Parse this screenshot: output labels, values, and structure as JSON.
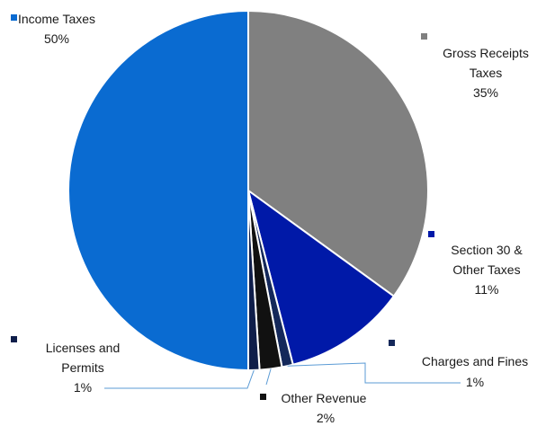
{
  "chart_data": {
    "type": "pie",
    "title": "",
    "slices": [
      {
        "name": "Gross Receipts Taxes",
        "label_lines": [
          "Gross Receipts",
          "Taxes"
        ],
        "percent_label": "35%",
        "value": 35,
        "color": "#808080"
      },
      {
        "name": "Section 30 & Other Taxes",
        "label_lines": [
          "Section 30 &",
          "Other Taxes"
        ],
        "percent_label": "11%",
        "value": 11,
        "color": "#0019a8"
      },
      {
        "name": "Charges and Fines",
        "label_lines": [
          "Charges and Fines"
        ],
        "percent_label": "1%",
        "value": 1,
        "color": "#14285a"
      },
      {
        "name": "Other Revenue",
        "label_lines": [
          "Other Revenue"
        ],
        "percent_label": "2%",
        "value": 2,
        "color": "#111111"
      },
      {
        "name": "Licenses and Permits",
        "label_lines": [
          "Licenses and",
          "Permits"
        ],
        "percent_label": "1%",
        "value": 1,
        "color": "#0f1e4a"
      },
      {
        "name": "Income Taxes",
        "label_lines": [
          "Income Taxes"
        ],
        "percent_label": "50%",
        "value": 50,
        "color": "#0a6bd1"
      }
    ],
    "legend": "labels beside slices with colored square markers",
    "leader_line_color": "#5b9bd5"
  }
}
